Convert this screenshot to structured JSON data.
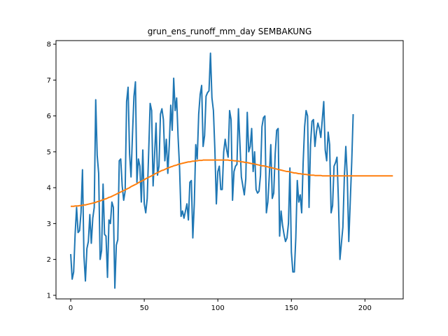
{
  "chart_data": {
    "type": "line",
    "title": "grun_ens_runoff_mm_day SEMBAKUNG",
    "xlabel": "",
    "ylabel": "",
    "xlim": [
      -10,
      226
    ],
    "ylim": [
      0.9,
      8.1
    ],
    "x_ticks": [
      0,
      50,
      100,
      150,
      200
    ],
    "y_ticks": [
      1,
      2,
      3,
      4,
      5,
      6,
      7,
      8
    ],
    "grid": false,
    "legend": "none",
    "series": [
      {
        "color": "#1f77b4",
        "values": [
          2.15,
          1.45,
          1.65,
          2.7,
          3.45,
          2.75,
          2.8,
          3.3,
          4.5,
          2.1,
          1.4,
          2.3,
          2.5,
          3.25,
          2.45,
          3.15,
          3.45,
          6.45,
          4.9,
          4.4,
          2.0,
          2.25,
          4.1,
          2.7,
          2.65,
          1.5,
          3.1,
          3.0,
          3.6,
          3.45,
          1.2,
          2.4,
          2.55,
          4.75,
          4.8,
          4.05,
          3.65,
          3.9,
          6.4,
          6.8,
          4.95,
          4.3,
          5.5,
          6.55,
          6.95,
          4.15,
          4.8,
          4.6,
          3.6,
          5.05,
          3.55,
          3.3,
          3.7,
          5.0,
          6.35,
          6.15,
          4.05,
          4.9,
          5.8,
          4.35,
          4.6,
          6.05,
          6.2,
          5.9,
          4.75,
          5.35,
          4.4,
          5.2,
          6.3,
          5.6,
          7.05,
          6.15,
          6.5,
          5.4,
          4.55,
          3.2,
          3.35,
          3.15,
          3.35,
          3.55,
          3.1,
          4.15,
          4.2,
          2.6,
          3.55,
          5.2,
          4.8,
          6.05,
          6.6,
          6.85,
          5.15,
          5.45,
          6.55,
          6.65,
          6.7,
          7.75,
          6.5,
          6.15,
          5.05,
          3.55,
          4.45,
          4.6,
          3.95,
          3.95,
          5.0,
          5.35,
          5.05,
          4.85,
          6.15,
          5.9,
          3.65,
          4.45,
          4.6,
          4.65,
          6.2,
          5.25,
          4.3,
          4.05,
          3.8,
          4.25,
          6.1,
          5.0,
          5.15,
          5.65,
          4.45,
          5.0,
          3.95,
          3.85,
          3.9,
          4.35,
          5.7,
          5.95,
          6.0,
          3.3,
          3.6,
          4.35,
          5.2,
          3.7,
          3.85,
          4.95,
          5.6,
          5.65,
          2.65,
          3.35,
          2.95,
          2.7,
          2.5,
          2.6,
          3.0,
          4.55,
          2.2,
          1.65,
          1.65,
          2.6,
          4.2,
          3.6,
          3.8,
          3.3,
          4.7,
          5.7,
          6.15,
          6.0,
          3.45,
          5.2,
          5.85,
          5.9,
          5.15,
          5.55,
          5.8,
          5.65,
          5.4,
          5.9,
          6.4,
          5.05,
          4.75,
          5.55,
          5.2,
          3.3,
          3.5,
          4.6,
          4.7,
          4.85,
          3.6,
          2.0,
          2.45,
          2.9,
          4.3,
          5.15,
          4.3,
          2.5,
          3.6,
          4.7,
          6.05
        ]
      },
      {
        "color": "#ff7f0e",
        "values": [
          3.48,
          3.48,
          3.48,
          3.49,
          3.49,
          3.49,
          3.5,
          3.5,
          3.51,
          3.52,
          3.52,
          3.53,
          3.54,
          3.55,
          3.56,
          3.57,
          3.58,
          3.59,
          3.61,
          3.62,
          3.63,
          3.65,
          3.66,
          3.68,
          3.69,
          3.71,
          3.73,
          3.74,
          3.76,
          3.78,
          3.8,
          3.82,
          3.84,
          3.86,
          3.88,
          3.9,
          3.92,
          3.94,
          3.96,
          3.98,
          4.0,
          4.03,
          4.05,
          4.07,
          4.09,
          4.11,
          4.14,
          4.16,
          4.18,
          4.2,
          4.22,
          4.25,
          4.27,
          4.29,
          4.31,
          4.33,
          4.35,
          4.38,
          4.4,
          4.42,
          4.44,
          4.46,
          4.48,
          4.49,
          4.51,
          4.53,
          4.55,
          4.56,
          4.58,
          4.59,
          4.61,
          4.62,
          4.63,
          4.65,
          4.66,
          4.67,
          4.68,
          4.69,
          4.7,
          4.71,
          4.72,
          4.72,
          4.73,
          4.74,
          4.74,
          4.75,
          4.75,
          4.76,
          4.76,
          4.76,
          4.77,
          4.77,
          4.77,
          4.77,
          4.77,
          4.77,
          4.77,
          4.77,
          4.77,
          4.77,
          4.77,
          4.77,
          4.77,
          4.77,
          4.77,
          4.77,
          4.77,
          4.77,
          4.76,
          4.76,
          4.76,
          4.75,
          4.75,
          4.74,
          4.74,
          4.73,
          4.72,
          4.72,
          4.71,
          4.7,
          4.7,
          4.69,
          4.68,
          4.67,
          4.67,
          4.66,
          4.65,
          4.64,
          4.63,
          4.62,
          4.61,
          4.61,
          4.6,
          4.59,
          4.58,
          4.57,
          4.56,
          4.55,
          4.54,
          4.53,
          4.52,
          4.51,
          4.5,
          4.49,
          4.48,
          4.47,
          4.46,
          4.45,
          4.45,
          4.44,
          4.43,
          4.42,
          4.41,
          4.41,
          4.4,
          4.39,
          4.39,
          4.38,
          4.38,
          4.37,
          4.37,
          4.36,
          4.36,
          4.35,
          4.35,
          4.35,
          4.34,
          4.34,
          4.34,
          4.34,
          4.34,
          4.33,
          4.33,
          4.33,
          4.33,
          4.33,
          4.33,
          4.33,
          4.33,
          4.33,
          4.33,
          4.33,
          4.33,
          4.33,
          4.33,
          4.33,
          4.33,
          4.33,
          4.33,
          4.33,
          4.33,
          4.33,
          4.33,
          4.33,
          4.33,
          4.33,
          4.33,
          4.33,
          4.33,
          4.33,
          4.33,
          4.33,
          4.33,
          4.33,
          4.33,
          4.33,
          4.33,
          4.33,
          4.33,
          4.33,
          4.33,
          4.33,
          4.33,
          4.33,
          4.33,
          4.33,
          4.33,
          4.33,
          4.33,
          4.33
        ]
      }
    ]
  }
}
